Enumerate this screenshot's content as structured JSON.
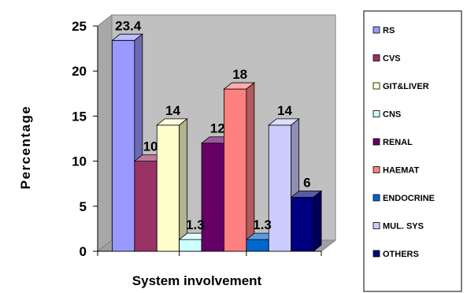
{
  "chart_data": {
    "type": "bar",
    "categories": [
      "RS",
      "CVS",
      "GIT&LIVER",
      "CNS",
      "RENAL",
      "HAEMAT",
      "ENDOCRINE",
      "MUL. SYS",
      "OTHERS"
    ],
    "values": [
      23.4,
      10,
      14,
      1.3,
      12,
      18,
      1.3,
      14,
      6
    ],
    "data_labels": [
      "23.4",
      "10",
      "14",
      "1.3",
      "12",
      "18",
      "1.3",
      "14",
      "6"
    ],
    "colors": [
      "#9999ff",
      "#993366",
      "#ffffcc",
      "#ccffff",
      "#660066",
      "#ff8080",
      "#0066cc",
      "#ccccff",
      "#000080"
    ],
    "xlabel": "System involvement",
    "ylabel": "Percentage",
    "ylim": [
      0,
      25
    ],
    "yticks": [
      "0",
      "5",
      "10",
      "15",
      "20",
      "25"
    ],
    "legend_position": "right",
    "style": "3d-clustered-bar",
    "plot_background": "#c0c0c0"
  }
}
